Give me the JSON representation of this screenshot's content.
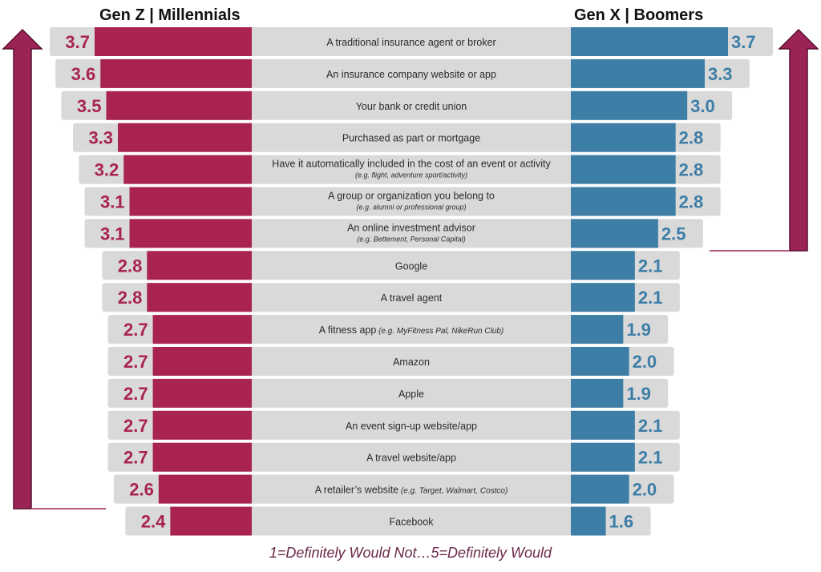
{
  "colors": {
    "left_bar": "#a8234f",
    "right_bar": "#3d7ea6",
    "track": "#d9d9d9",
    "arrow": "#9b2356",
    "left_text": "#a8234f",
    "right_text": "#3d7ea6"
  },
  "chart_data": {
    "type": "bar",
    "orientation": "diverging-horizontal",
    "scale": [
      1,
      5
    ],
    "left_header": "Gen Z | Millennials",
    "right_header": "Gen X | Boomers",
    "footer": "1=Definitely Would Not…5=Definitely Would",
    "categories": [
      {
        "label": "A traditional insurance agent or broker",
        "sub": ""
      },
      {
        "label": "An insurance company website or app",
        "sub": ""
      },
      {
        "label": "Your bank or credit union",
        "sub": ""
      },
      {
        "label": "Purchased as part or mortgage",
        "sub": ""
      },
      {
        "label": "Have it automatically included in the cost of an event or activity",
        "sub": "(e.g. flight, adventure sport/activity)"
      },
      {
        "label": "A group or organization you belong to",
        "sub": "(e.g. alumni or professional group)"
      },
      {
        "label": "An online investment advisor",
        "sub": "(e.g. Bettement, Personal Capital)"
      },
      {
        "label": "Google",
        "sub": ""
      },
      {
        "label": "A travel agent",
        "sub": ""
      },
      {
        "label": "A fitness app",
        "inline_sub": "(e.g. MyFitness Pal, NikeRun Club)",
        "sub": ""
      },
      {
        "label": "Amazon",
        "sub": ""
      },
      {
        "label": "Apple",
        "sub": ""
      },
      {
        "label": "An event sign-up website/app",
        "sub": ""
      },
      {
        "label": "A travel website/app",
        "sub": ""
      },
      {
        "label": "A retailer’s website",
        "inline_sub": "(e.g. Target, Walmart, Costco)",
        "sub": ""
      },
      {
        "label": "Facebook",
        "sub": ""
      }
    ],
    "series": [
      {
        "name": "Gen Z | Millennials",
        "values": [
          3.7,
          3.6,
          3.5,
          3.3,
          3.2,
          3.1,
          3.1,
          2.8,
          2.8,
          2.7,
          2.7,
          2.7,
          2.7,
          2.7,
          2.6,
          2.4
        ],
        "labels": [
          "3.7",
          "3.6",
          "3.5",
          "3.3",
          "3.2",
          "3.1",
          "3.1",
          "2.8",
          "2.8",
          "2.7",
          "2.7",
          "2.7",
          "2.7",
          "2.7",
          "2.6",
          "2.4"
        ]
      },
      {
        "name": "Gen X | Boomers",
        "values": [
          3.7,
          3.3,
          3.0,
          2.8,
          2.8,
          2.8,
          2.5,
          2.1,
          2.1,
          1.9,
          2.0,
          1.9,
          2.1,
          2.1,
          2.0,
          1.6
        ],
        "labels": [
          "3.7",
          "3.3",
          "3.0",
          "2.8",
          "2.8",
          "2.8",
          "2.5",
          "2.1",
          "2.1",
          "1.9",
          "2.0",
          "1.9",
          "2.1",
          "2.1",
          "2.0",
          "1.6"
        ]
      }
    ]
  }
}
